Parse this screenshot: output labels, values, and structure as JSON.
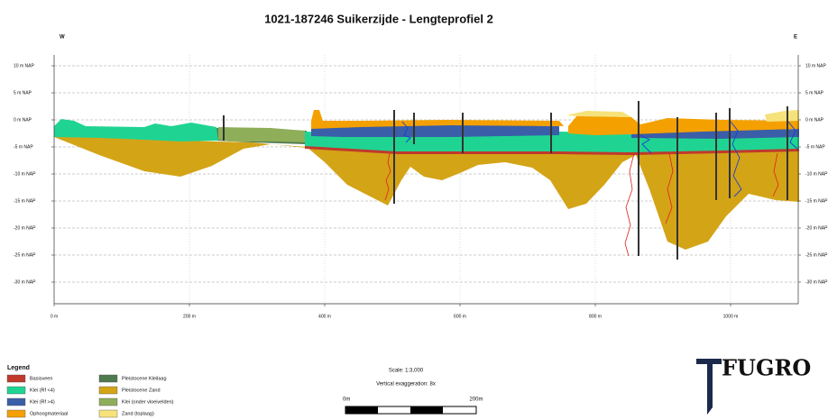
{
  "chart_data": {
    "type": "profile",
    "title": "1021-187246 Suikerzijde - Lengteprofiel 2",
    "west_label": "W",
    "east_label": "E",
    "xlim": [
      0,
      1100
    ],
    "xticks": [
      {
        "value": 0,
        "label": "0 m"
      },
      {
        "value": 200,
        "label": "200 m"
      },
      {
        "value": 400,
        "label": "400 m"
      },
      {
        "value": 600,
        "label": "600 m"
      },
      {
        "value": 800,
        "label": "800 m"
      },
      {
        "value": 1000,
        "label": "1000 m"
      }
    ],
    "ylim": [
      -34,
      12
    ],
    "yticks": [
      {
        "value": 10,
        "label": "10 m NAP"
      },
      {
        "value": 5,
        "label": "5 m NAP"
      },
      {
        "value": 0,
        "label": "0 m NAP"
      },
      {
        "value": -5,
        "label": "-5 m NAP"
      },
      {
        "value": -10,
        "label": "-10 m NAP"
      },
      {
        "value": -15,
        "label": "-15 m NAP"
      },
      {
        "value": -20,
        "label": "-20 m NAP"
      },
      {
        "value": -25,
        "label": "-25 m NAP"
      },
      {
        "value": -30,
        "label": "-30 m NAP"
      }
    ],
    "grid": true,
    "legend": {
      "title": "Legend",
      "items": [
        {
          "name": "Basisveen",
          "color": "#c0392b"
        },
        {
          "name": "Klei (Rf <4)",
          "color": "#1fd492"
        },
        {
          "name": "Klei (Rf >4)",
          "color": "#3a5ea8"
        },
        {
          "name": "Ophoogmateriaal",
          "color": "#f4a000"
        },
        {
          "name": "Pleistocene Kleilaag",
          "color": "#4f7a4f"
        },
        {
          "name": "Pleistocene Zand",
          "color": "#d4a417"
        },
        {
          "name": "Klei (onder vloeivelden)",
          "color": "#8fae5a"
        },
        {
          "name": "Zand (toplaag)",
          "color": "#f6e27a"
        }
      ]
    },
    "scale": {
      "text": "Scale: 1:3,000",
      "exaggeration": "Vertical exaggeration: 8x",
      "bar_start": "0m",
      "bar_end": "200m"
    },
    "logo": "FUGRO"
  }
}
